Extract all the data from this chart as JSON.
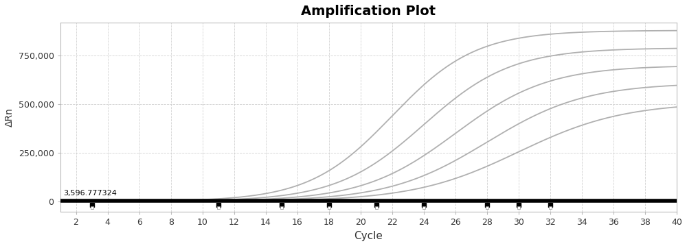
{
  "title": "Amplification Plot",
  "xlabel": "Cycle",
  "ylabel": "ΔRn",
  "xlim": [
    1,
    40
  ],
  "ylim": [
    -55000,
    920000
  ],
  "yticks": [
    0,
    250000,
    500000,
    750000
  ],
  "ytick_labels": [
    "0",
    "250,000",
    "500,000",
    "750,000"
  ],
  "xticks": [
    2,
    4,
    6,
    8,
    10,
    12,
    14,
    16,
    18,
    20,
    22,
    24,
    26,
    28,
    30,
    32,
    34,
    36,
    38,
    40
  ],
  "threshold_y": 3596.777324,
  "threshold_label": "3,596.777324",
  "bg_color": "#ffffff",
  "plot_bg_color": "#ffffff",
  "grid_color": "#cccccc",
  "curve_color": "#b0b0b0",
  "threshold_color": "#000000",
  "scatter_x": [
    3,
    11,
    15,
    18,
    21,
    24,
    28,
    30,
    32
  ],
  "n_curves": 5,
  "curve_params": [
    {
      "L": 880000,
      "k": 0.38,
      "x0": 22
    },
    {
      "L": 790000,
      "k": 0.36,
      "x0": 24
    },
    {
      "L": 700000,
      "k": 0.34,
      "x0": 26
    },
    {
      "L": 610000,
      "k": 0.32,
      "x0": 28
    },
    {
      "L": 510000,
      "k": 0.3,
      "x0": 30
    }
  ]
}
